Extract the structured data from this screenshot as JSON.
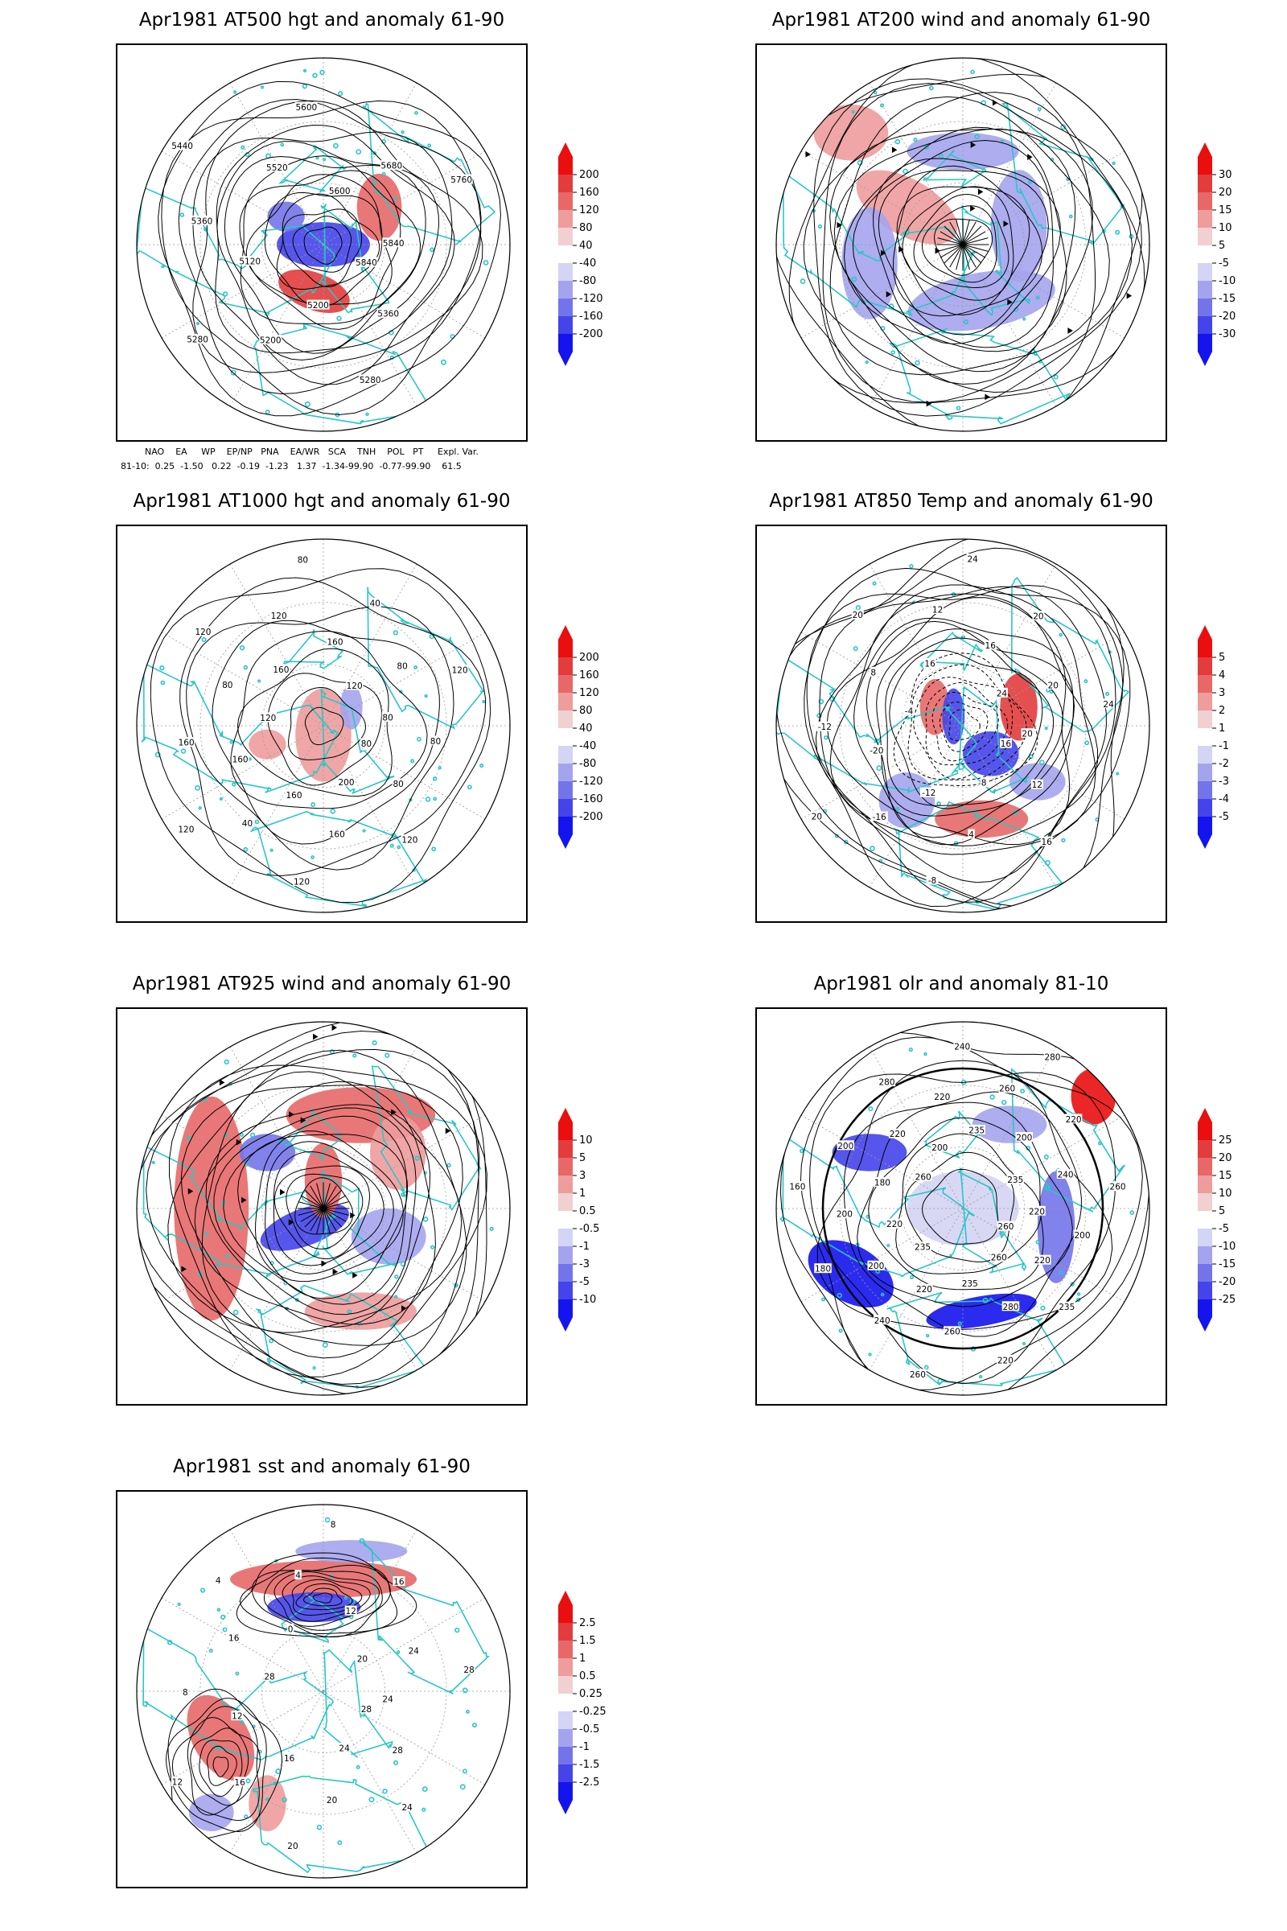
{
  "panels": [
    {
      "id": "p500",
      "title": "Apr1981 AT500 hgt and anomaly 61-90",
      "contour_labels": [
        "5840",
        "5360",
        "5280",
        "5200",
        "5200",
        "5280",
        "5120",
        "5360",
        "5440",
        "5520",
        "5600",
        "5600",
        "5680",
        "5760",
        "5840"
      ],
      "colorbar": [
        "200",
        "160",
        "120",
        "80",
        "40",
        "-40",
        "-80",
        "-120",
        "-160",
        "-200"
      ]
    },
    {
      "id": "p200",
      "title": "Apr1981 AT200 wind and anomaly 61-90",
      "contour_labels": [],
      "colorbar": [
        "30",
        "20",
        "15",
        "10",
        "5",
        "-5",
        "-10",
        "-15",
        "-20",
        "-30"
      ]
    },
    {
      "id": "p1000",
      "title": "Apr1981 AT1000 hgt and anomaly 61-90",
      "contour_labels": [
        "80",
        "80",
        "120",
        "200",
        "160",
        "120",
        "160",
        "40",
        "120",
        "160",
        "160",
        "120",
        "80",
        "120",
        "160",
        "120",
        "80",
        "160",
        "40",
        "120",
        "80",
        "120",
        "80",
        "80"
      ],
      "colorbar": [
        "200",
        "160",
        "120",
        "80",
        "40",
        "-40",
        "-80",
        "-120",
        "-160",
        "-200"
      ]
    },
    {
      "id": "p850",
      "title": "Apr1981 AT850 Temp and anomaly 61-90",
      "contour_labels": [
        "16",
        "12",
        "16",
        "8",
        "4",
        "-8",
        "-12",
        "-16",
        "20",
        "-20",
        "-12",
        "-4",
        "8",
        "20",
        "16",
        "12",
        "24",
        "16",
        "20",
        "24",
        "20",
        "24",
        "20"
      ],
      "colorbar": [
        "5",
        "4",
        "3",
        "2",
        "1",
        "-1",
        "-2",
        "-3",
        "-4",
        "-5"
      ]
    },
    {
      "id": "p925",
      "title": "Apr1981 AT925 wind and anomaly 61-90",
      "contour_labels": [],
      "colorbar": [
        "10",
        "5",
        "3",
        "1",
        "0.5",
        "-0.5",
        "-1",
        "-3",
        "-5",
        "-10"
      ]
    },
    {
      "id": "polr",
      "title": "Apr1981 olr and anomaly 81-10",
      "contour_labels": [
        "260",
        "220",
        "235",
        "260",
        "280",
        "220",
        "235",
        "260",
        "260",
        "220",
        "240",
        "235",
        "200",
        "180",
        "220",
        "200",
        "160",
        "180",
        "200",
        "260",
        "220",
        "280",
        "200",
        "220",
        "240",
        "235",
        "260",
        "280",
        "200",
        "220",
        "235",
        "240",
        "260",
        "220",
        "200"
      ],
      "colorbar": [
        "25",
        "20",
        "15",
        "10",
        "5",
        "-5",
        "-10",
        "-15",
        "-20",
        "-25"
      ]
    },
    {
      "id": "psst",
      "title": "Apr1981 sst and anomaly 61-90",
      "contour_labels": [
        "28",
        "28",
        "24",
        "24",
        "20",
        "20",
        "16",
        "16",
        "12",
        "12",
        "8",
        "28",
        "16",
        "4",
        "0",
        "4",
        "8",
        "12",
        "16",
        "20",
        "24",
        "28",
        "24"
      ],
      "colorbar": [
        "2.5",
        "1.5",
        "1",
        "0.5",
        "0.25",
        "-0.25",
        "-0.5",
        "-1",
        "-1.5",
        "-2.5"
      ]
    }
  ],
  "index_table": {
    "header": "NAO    EA     WP    EP/NP   PNA    EA/WR   SCA    TNH    POL   PT     Expl. Var.",
    "row": "81-10:  0.25  -1.50   0.22  -0.19  -1.23   1.37  -1.34-99.90  -0.77-99.90    61.5"
  },
  "colors": {
    "contour": "#000000",
    "coast": "#2ac6c6",
    "grid": "#9a9a9a",
    "positive": [
      "#f0d0d0",
      "#ee9c9c",
      "#e86868",
      "#e23c3c",
      "#ea0e0e"
    ],
    "negative": [
      "#d4d4f4",
      "#a4a4ee",
      "#7474ea",
      "#4444ea",
      "#1414ee"
    ]
  }
}
